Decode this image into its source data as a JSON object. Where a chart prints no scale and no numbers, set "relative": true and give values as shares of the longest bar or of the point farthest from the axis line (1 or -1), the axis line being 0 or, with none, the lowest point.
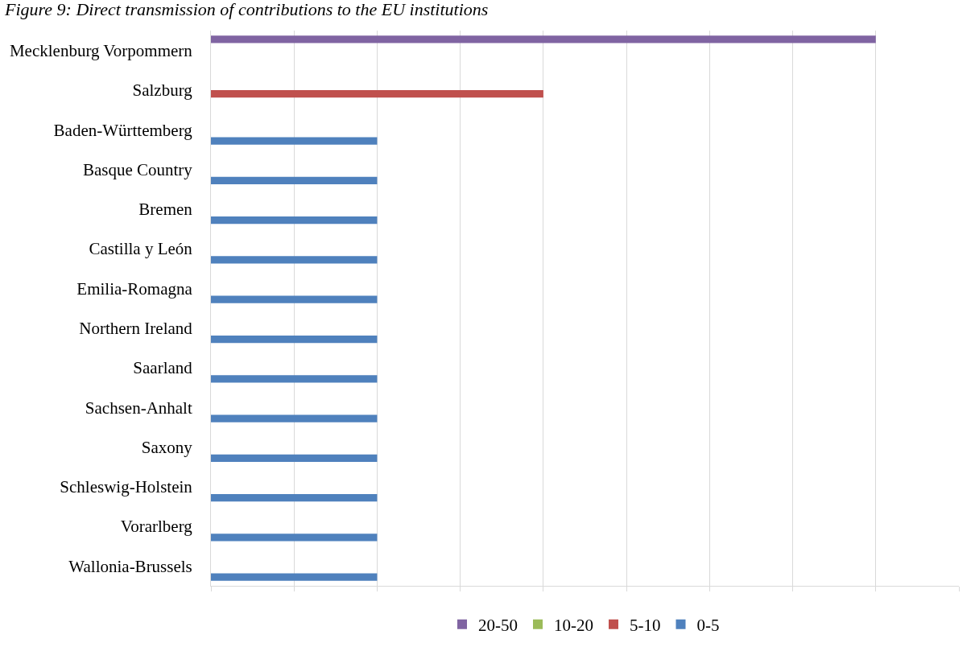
{
  "chart_data": {
    "type": "bar",
    "orientation": "horizontal",
    "relative": true,
    "title": "Figure 9: Direct transmission of contributions to the EU institutions",
    "categories": [
      "Mecklenburg Vorpommern",
      "Salzburg",
      "Baden-Württemberg",
      "Basque Country",
      "Bremen",
      "Castilla y León",
      "Emilia-Romagna",
      "Northern Ireland",
      "Saarland",
      "Sachsen-Anhalt",
      "Saxony",
      "Schleswig-Holstein",
      "Vorarlberg",
      "Wallonia-Brussels"
    ],
    "series": [
      {
        "name": "20-50",
        "color": "#8064a2",
        "values": [
          1,
          null,
          null,
          null,
          null,
          null,
          null,
          null,
          null,
          null,
          null,
          null,
          null,
          null
        ]
      },
      {
        "name": "10-20",
        "color": "#9bbb59",
        "values": [
          null,
          null,
          null,
          null,
          null,
          null,
          null,
          null,
          null,
          null,
          null,
          null,
          null,
          null
        ]
      },
      {
        "name": "5-10",
        "color": "#c0504d",
        "values": [
          null,
          0.5,
          null,
          null,
          null,
          null,
          null,
          null,
          null,
          null,
          null,
          null,
          null,
          null
        ]
      },
      {
        "name": "0-5",
        "color": "#4f81bd",
        "values": [
          null,
          null,
          0.25,
          0.25,
          0.25,
          0.25,
          0.25,
          0.25,
          0.25,
          0.25,
          0.25,
          0.25,
          0.25,
          0.25
        ]
      }
    ],
    "grid": "x",
    "legend": "bottom"
  }
}
